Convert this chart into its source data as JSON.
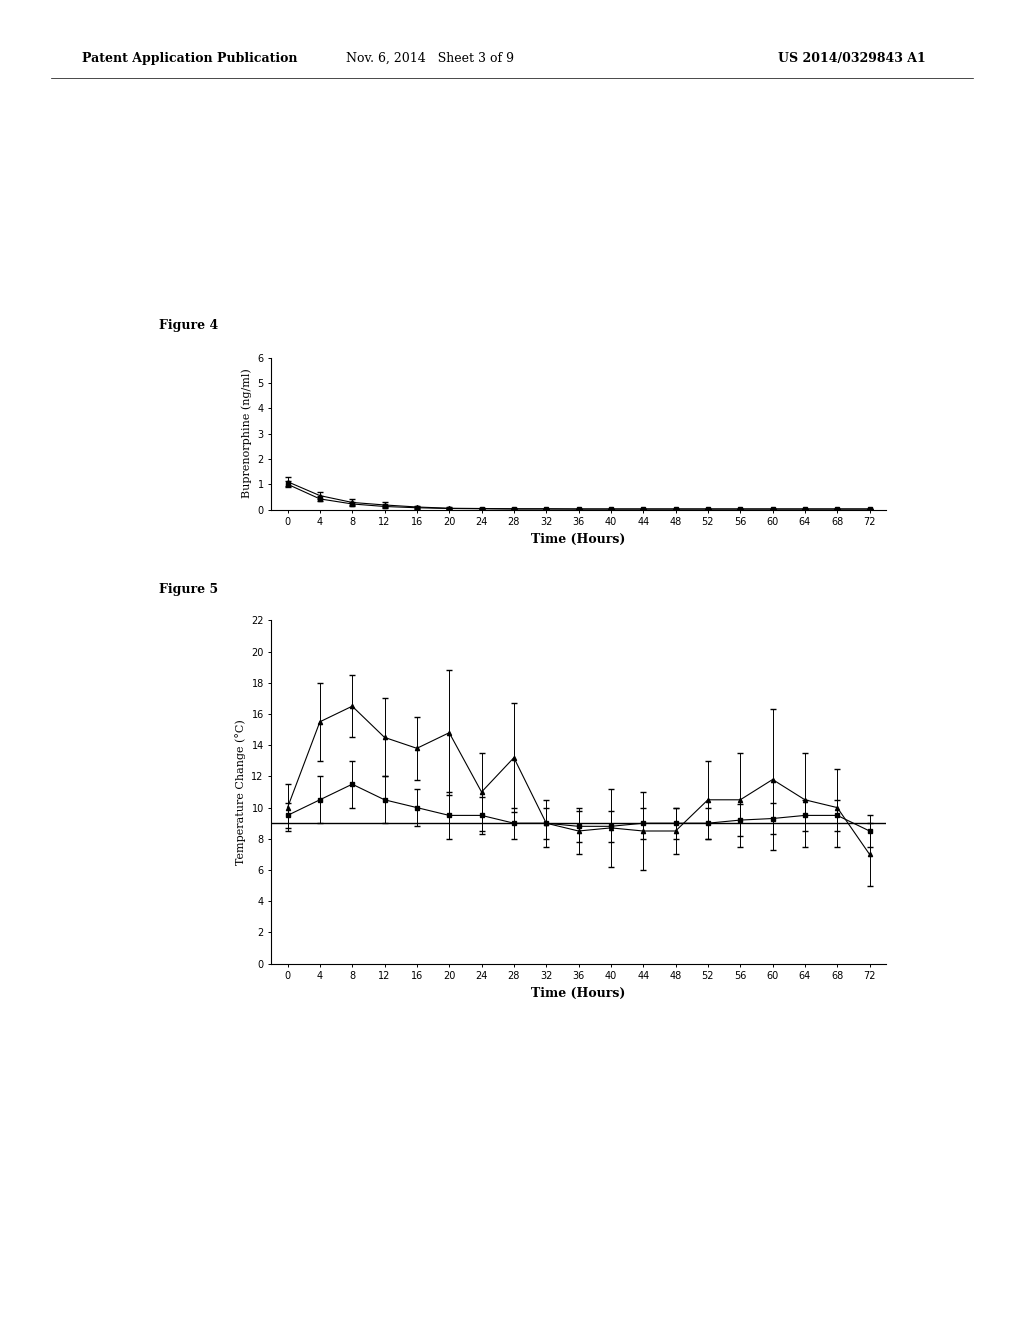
{
  "fig4_label": "Figure 4",
  "fig5_label": "Figure 5",
  "header_left": "Patent Application Publication",
  "header_mid": "Nov. 6, 2014   Sheet 3 of 9",
  "header_right": "US 2014/0329843 A1",
  "fig4": {
    "ylabel": "Buprenorphine (ng/ml)",
    "xlabel": "Time (Hours)",
    "ylim": [
      0,
      6
    ],
    "yticks": [
      0,
      1,
      2,
      3,
      4,
      5,
      6
    ],
    "xticks": [
      0,
      4,
      8,
      12,
      16,
      20,
      24,
      28,
      32,
      36,
      40,
      44,
      48,
      52,
      56,
      60,
      64,
      68,
      72
    ],
    "line1_x": [
      0,
      4,
      8,
      12,
      16,
      20,
      24,
      28,
      32,
      36,
      40,
      44,
      48,
      52,
      56,
      60,
      64,
      68,
      72
    ],
    "line1_y": [
      1.1,
      0.55,
      0.28,
      0.18,
      0.1,
      0.05,
      0.04,
      0.03,
      0.03,
      0.02,
      0.02,
      0.02,
      0.02,
      0.02,
      0.02,
      0.02,
      0.02,
      0.02,
      0.02
    ],
    "line1_yerr": [
      0.18,
      0.15,
      0.12,
      0.1,
      0.05,
      0.03,
      0.02,
      0.02,
      0.01,
      0.01,
      0.01,
      0.01,
      0.01,
      0.01,
      0.01,
      0.01,
      0.01,
      0.01,
      0.01
    ],
    "line2_x": [
      0,
      4,
      8,
      12,
      16,
      20,
      24,
      28,
      32,
      36,
      40,
      44,
      48,
      52,
      56,
      60,
      64,
      68,
      72
    ],
    "line2_y": [
      1.0,
      0.42,
      0.22,
      0.12,
      0.07,
      0.04,
      0.03,
      0.02,
      0.02,
      0.02,
      0.02,
      0.02,
      0.02,
      0.02,
      0.02,
      0.02,
      0.02,
      0.02,
      0.02
    ],
    "line2_yerr": [
      0.12,
      0.1,
      0.08,
      0.06,
      0.03,
      0.02,
      0.015,
      0.01,
      0.01,
      0.01,
      0.01,
      0.01,
      0.01,
      0.01,
      0.01,
      0.01,
      0.01,
      0.01,
      0.01
    ]
  },
  "fig5": {
    "ylabel": "Temperature Change (°C)",
    "xlabel": "Time (Hours)",
    "ylim": [
      0,
      22
    ],
    "yticks": [
      0,
      2,
      4,
      6,
      8,
      10,
      12,
      14,
      16,
      18,
      20,
      22
    ],
    "xticks": [
      0,
      4,
      8,
      12,
      16,
      20,
      24,
      28,
      32,
      36,
      40,
      44,
      48,
      52,
      56,
      60,
      64,
      68,
      72
    ],
    "line1_x": [
      0,
      4,
      8,
      12,
      16,
      20,
      24,
      28,
      32,
      36,
      40,
      44,
      48,
      52,
      56,
      60,
      64,
      68,
      72
    ],
    "line1_y": [
      10.0,
      15.5,
      16.5,
      14.5,
      13.8,
      14.8,
      11.0,
      13.2,
      9.0,
      8.5,
      8.7,
      8.5,
      8.5,
      10.5,
      10.5,
      11.8,
      10.5,
      10.0,
      7.0
    ],
    "line1_yerr": [
      1.5,
      2.5,
      2.0,
      2.5,
      2.0,
      4.0,
      2.5,
      3.5,
      1.5,
      1.5,
      2.5,
      2.5,
      1.5,
      2.5,
      3.0,
      4.5,
      3.0,
      2.5,
      2.0
    ],
    "line2_x": [
      0,
      4,
      8,
      12,
      16,
      20,
      24,
      28,
      32,
      36,
      40,
      44,
      48,
      52,
      56,
      60,
      64,
      68,
      72
    ],
    "line2_y": [
      9.5,
      10.5,
      11.5,
      10.5,
      10.0,
      9.5,
      9.5,
      9.0,
      9.0,
      8.8,
      8.8,
      9.0,
      9.0,
      9.0,
      9.2,
      9.3,
      9.5,
      9.5,
      8.5
    ],
    "line2_yerr": [
      0.8,
      1.5,
      1.5,
      1.5,
      1.2,
      1.5,
      1.2,
      1.0,
      1.0,
      1.0,
      1.0,
      1.0,
      1.0,
      1.0,
      1.0,
      1.0,
      1.0,
      1.0,
      1.0
    ],
    "hline_y": 9.0
  }
}
